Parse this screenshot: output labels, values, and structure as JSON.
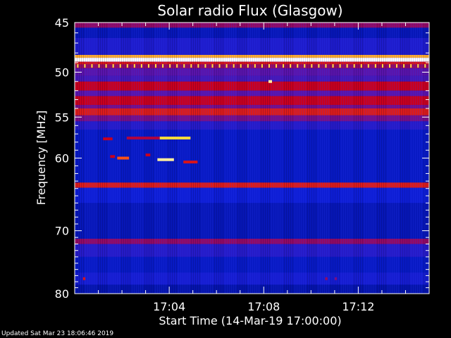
{
  "chart_data": {
    "type": "heatmap",
    "title": "Solar radio Flux (Glasgow)",
    "xlabel": "Start Time (14-Mar-19 17:00:00)",
    "ylabel": "Frequency [MHz]",
    "x_unit": "minutes after 17:00:00",
    "xlim": [
      0,
      15
    ],
    "ylim": [
      45,
      80
    ],
    "y_scale": "log",
    "y_inverted": true,
    "x_ticks": [
      {
        "value": 4,
        "label": "17:04"
      },
      {
        "value": 8,
        "label": "17:08"
      },
      {
        "value": 12,
        "label": "17:12"
      }
    ],
    "y_ticks": [
      {
        "value": 45,
        "label": "45"
      },
      {
        "value": 50,
        "label": "50"
      },
      {
        "value": 55,
        "label": "55"
      },
      {
        "value": 60,
        "label": "60"
      },
      {
        "value": 70,
        "label": "70"
      },
      {
        "value": 80,
        "label": "80"
      }
    ],
    "colors": {
      "background": "#000000",
      "low": "#0010c8",
      "mid": "#c00018",
      "high": "#ffe040",
      "saturated": "#ffffff"
    },
    "frequency_bands": [
      {
        "freq_start": 45.0,
        "freq_end": 45.5,
        "level": 0.45
      },
      {
        "freq_start": 45.5,
        "freq_end": 46.5,
        "level": 0.1
      },
      {
        "freq_start": 46.5,
        "freq_end": 48.2,
        "level": 0.2
      },
      {
        "freq_start": 48.2,
        "freq_end": 48.5,
        "level": 0.85
      },
      {
        "freq_start": 48.5,
        "freq_end": 48.9,
        "level": 1.0
      },
      {
        "freq_start": 48.9,
        "freq_end": 49.2,
        "level": 0.6
      },
      {
        "freq_start": 49.2,
        "freq_end": 49.6,
        "level": 0.45
      },
      {
        "freq_start": 49.6,
        "freq_end": 50.4,
        "level": 0.35
      },
      {
        "freq_start": 50.4,
        "freq_end": 51.0,
        "level": 0.3
      },
      {
        "freq_start": 51.0,
        "freq_end": 52.0,
        "level": 0.55
      },
      {
        "freq_start": 52.0,
        "freq_end": 52.6,
        "level": 0.35
      },
      {
        "freq_start": 52.6,
        "freq_end": 53.6,
        "level": 0.55
      },
      {
        "freq_start": 53.6,
        "freq_end": 54.0,
        "level": 0.4
      },
      {
        "freq_start": 54.0,
        "freq_end": 54.8,
        "level": 0.62
      },
      {
        "freq_start": 54.8,
        "freq_end": 55.5,
        "level": 0.4
      },
      {
        "freq_start": 55.5,
        "freq_end": 56.5,
        "level": 0.22
      },
      {
        "freq_start": 56.5,
        "freq_end": 63.2,
        "level": 0.12
      },
      {
        "freq_start": 63.2,
        "freq_end": 63.9,
        "level": 0.62
      },
      {
        "freq_start": 63.9,
        "freq_end": 66.0,
        "level": 0.16
      },
      {
        "freq_start": 66.0,
        "freq_end": 71.2,
        "level": 0.1
      },
      {
        "freq_start": 71.2,
        "freq_end": 72.0,
        "level": 0.45
      },
      {
        "freq_start": 72.0,
        "freq_end": 74.0,
        "level": 0.22
      },
      {
        "freq_start": 74.0,
        "freq_end": 76.5,
        "level": 0.12
      },
      {
        "freq_start": 76.5,
        "freq_end": 78.5,
        "level": 0.18
      },
      {
        "freq_start": 78.5,
        "freq_end": 80.0,
        "level": 0.08
      }
    ],
    "bursts": [
      {
        "time_start": 1.2,
        "time_end": 1.6,
        "freq": 57.6,
        "level": 0.55
      },
      {
        "time_start": 2.2,
        "time_end": 3.6,
        "freq": 57.5,
        "level": 0.5
      },
      {
        "time_start": 3.6,
        "time_end": 4.9,
        "freq": 57.5,
        "level": 0.9
      },
      {
        "time_start": 1.5,
        "time_end": 1.7,
        "freq": 59.8,
        "level": 0.55
      },
      {
        "time_start": 1.8,
        "time_end": 2.3,
        "freq": 60.0,
        "level": 0.75
      },
      {
        "time_start": 3.0,
        "time_end": 3.2,
        "freq": 59.6,
        "level": 0.55
      },
      {
        "time_start": 3.5,
        "time_end": 4.2,
        "freq": 60.2,
        "level": 0.95
      },
      {
        "time_start": 4.6,
        "time_end": 5.2,
        "freq": 60.5,
        "level": 0.6
      },
      {
        "time_start": 8.2,
        "time_end": 8.35,
        "freq": 51.0,
        "level": 0.95
      },
      {
        "time_start": 0.35,
        "time_end": 0.45,
        "freq": 77.5,
        "level": 0.6
      },
      {
        "time_start": 10.6,
        "time_end": 10.7,
        "freq": 77.5,
        "level": 0.45
      },
      {
        "time_start": 11.0,
        "time_end": 11.1,
        "freq": 77.5,
        "level": 0.4
      }
    ],
    "tick_row_frequency": 49.3,
    "tick_row_step_minutes": 0.3
  },
  "footer": {
    "updated": "Updated Sat Mar 23 18:06:46 2019"
  }
}
